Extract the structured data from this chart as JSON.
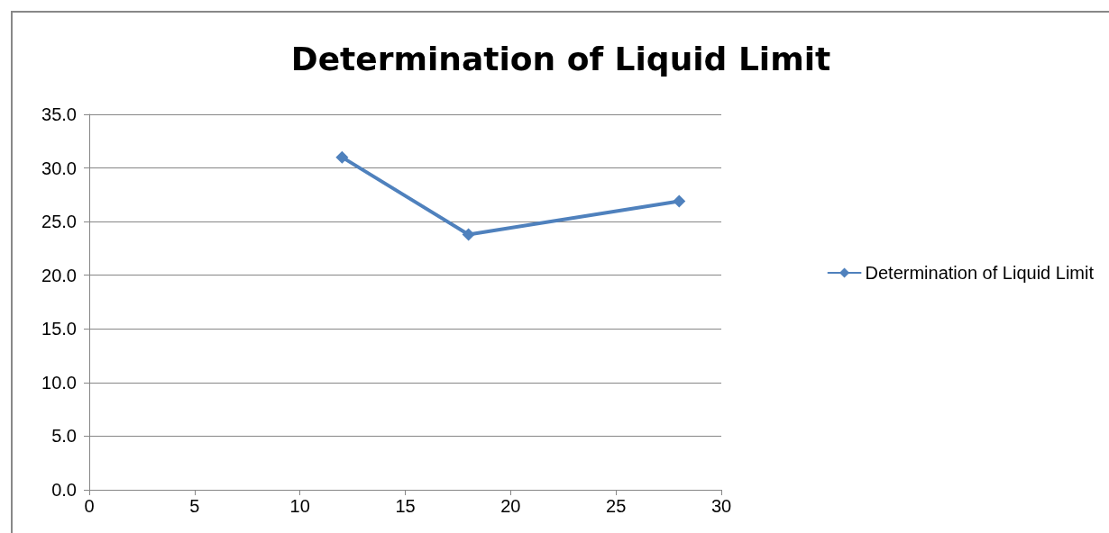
{
  "chart_data": {
    "type": "line",
    "title": "Determination of Liquid Limit",
    "x": [
      12,
      18,
      28
    ],
    "series": [
      {
        "name": "Determination of Liquid Limit",
        "color": "#4f81bd",
        "values": [
          31.0,
          23.8,
          26.9
        ]
      }
    ],
    "xlim": [
      0,
      30
    ],
    "xticks": [
      0,
      5,
      10,
      15,
      20,
      25,
      30
    ],
    "ylim": [
      0,
      35
    ],
    "yticks": [
      {
        "value": 0,
        "label": "0.0"
      },
      {
        "value": 5,
        "label": "5.0"
      },
      {
        "value": 10,
        "label": "10.0"
      },
      {
        "value": 15,
        "label": "15.0"
      },
      {
        "value": 20,
        "label": "20.0"
      },
      {
        "value": 25,
        "label": "25.0"
      },
      {
        "value": 30,
        "label": "30.0"
      },
      {
        "value": 35,
        "label": "35.0"
      }
    ],
    "grid": "y",
    "legend": "right",
    "marker": "diamond",
    "line_style": "solid"
  }
}
